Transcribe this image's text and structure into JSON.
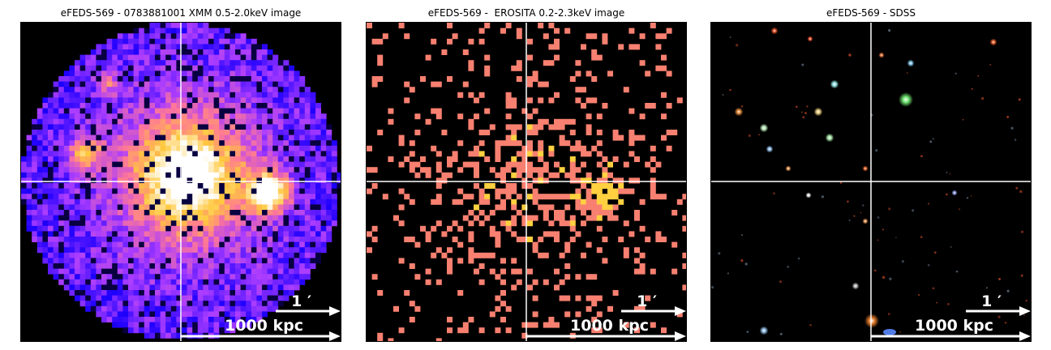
{
  "panels": [
    {
      "title": "eFEDS-569 - 0783881001 XMM 0.5-2.0keV image",
      "kind": "xmm"
    },
    {
      "title": "eFEDS-569 -  EROSITA 0.2-2.3keV image",
      "kind": "erosita"
    },
    {
      "title": "eFEDS-569 - SDSS",
      "kind": "sdss"
    }
  ],
  "scalebar": {
    "angular_label": "1 ′",
    "physical_label": "1000 kpc"
  },
  "colors": {
    "background": "#000000",
    "crosshair": "#ffffff",
    "scalebar": "#ffffff",
    "xmm_low": "#1a00ff",
    "xmm_mid": "#c050ff",
    "xmm_high": "#ffd060",
    "erosita_photon": "#f88070",
    "erosita_bright": "#ffd040"
  }
}
